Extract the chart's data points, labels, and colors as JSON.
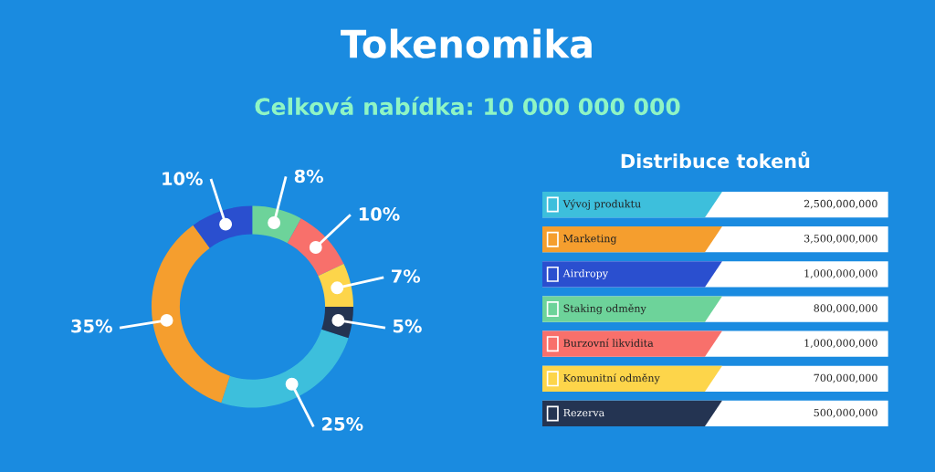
{
  "chart_data": {
    "type": "donut",
    "title": "Tokenomika",
    "subtitle": "Celková nabídka: 10 000 000 000",
    "legend_title": "Distribuce tokenů",
    "legend": "right",
    "categories": [
      "Vývoj produktu",
      "Marketing",
      "Airdropy",
      "Staking odměny",
      "Burzovní likvidita",
      "Komunitní odměny",
      "Rezerva"
    ],
    "values": [
      25,
      35,
      10,
      8,
      10,
      7,
      5
    ],
    "value_labels": [
      "25%",
      "35%",
      "10%",
      "8%",
      "10%",
      "7%",
      "5%"
    ],
    "colors": [
      "#3dbfdc",
      "#f59e2e",
      "#2a4fcf",
      "#6dd39a",
      "#f8706b",
      "#fdd54a",
      "#243452"
    ],
    "annotations": [
      "2,500,000,000",
      "3,500,000,000",
      "1,000,000,000",
      "800,000,000",
      "1,000,000,000",
      "700,000,000",
      "500,000,000"
    ]
  }
}
